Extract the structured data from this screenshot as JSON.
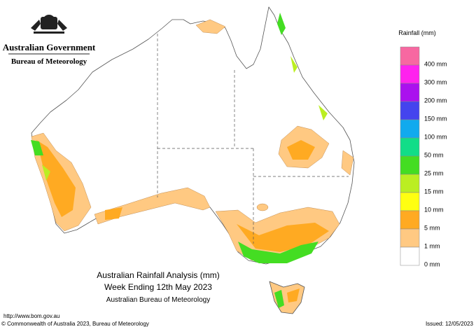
{
  "header": {
    "government": "Australian Government",
    "bureau": "Bureau of Meteorology"
  },
  "legend": {
    "title": "Rainfall (mm)",
    "items": [
      {
        "label": "400 mm",
        "color": "#f768a1"
      },
      {
        "label": "300 mm",
        "color": "#ff22ee"
      },
      {
        "label": "200 mm",
        "color": "#aa11ee"
      },
      {
        "label": "150 mm",
        "color": "#4444ee"
      },
      {
        "label": "100 mm",
        "color": "#11aaee"
      },
      {
        "label": "50 mm",
        "color": "#11dd88"
      },
      {
        "label": "25 mm",
        "color": "#44dd22"
      },
      {
        "label": "15 mm",
        "color": "#bbee22"
      },
      {
        "label": "10 mm",
        "color": "#ffff11"
      },
      {
        "label": "5 mm",
        "color": "#ffaa22"
      },
      {
        "label": "1 mm",
        "color": "#ffc982"
      },
      {
        "label": "0 mm",
        "color": "#ffffff"
      }
    ]
  },
  "titles": [
    "Australian Rainfall Analysis (mm)",
    "Week Ending 12th May 2023",
    "Australian Bureau of Meteorology"
  ],
  "footer": {
    "url": "http://www.bom.gov.au",
    "copyright": "© Commonwealth of Australia 2023, Bureau of Meteorology",
    "issued": "Issued: 12/05/2023"
  }
}
